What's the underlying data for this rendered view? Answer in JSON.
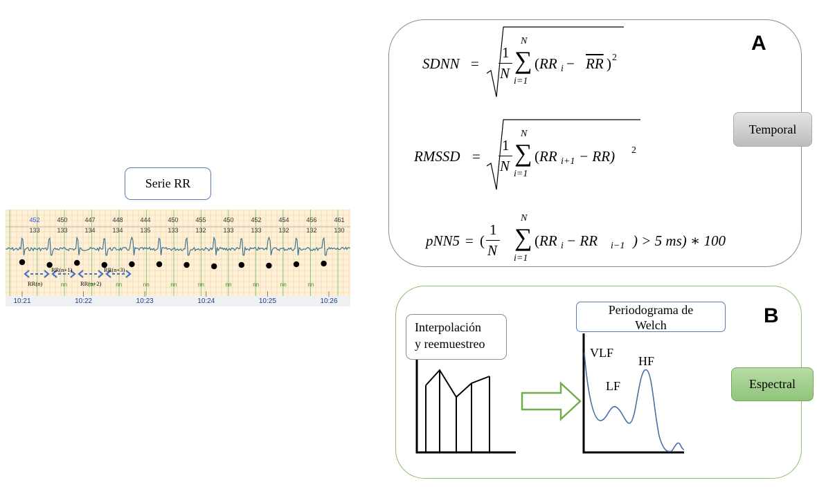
{
  "serie_label": "Serie RR",
  "ecg": {
    "top_values": [
      "452",
      "450",
      "447",
      "448",
      "444",
      "450",
      "455",
      "450",
      "452",
      "454",
      "456",
      "461"
    ],
    "bottom_values": [
      "133",
      "133",
      "134",
      "134",
      "135",
      "133",
      "132",
      "133",
      "133",
      "132",
      "132",
      "130"
    ],
    "nn_label": "nn",
    "interval_labels": [
      "RR(n)",
      "RR(n+1)",
      "RR(n+2)",
      "RR(n+3)"
    ],
    "time_labels": [
      "10:21",
      "10:22",
      "10:23",
      "10:24",
      "10:25",
      "10:26"
    ]
  },
  "panel_a": {
    "letter": "A",
    "category": "Temporal",
    "sdnn": {
      "lhs": "SDNN",
      "term": "(RR",
      "sub": "i",
      "minus": " − ",
      "mean": "RR",
      "close": ")",
      "exp": "2"
    },
    "rmssd": {
      "lhs": "RMSSD",
      "term": "(RR",
      "sub": "i+1",
      "minus": " − RR)",
      "exp": "2"
    },
    "pnn5": {
      "lhs": "pNN5",
      "open": "(",
      "term": "(RR",
      "sub1": "i",
      "minus": " − RR",
      "sub2": "i−1",
      "tail": ") > 5 ms) ∗ 100"
    },
    "sum_upper": "N",
    "sum_lower": "i=1",
    "frac_num": "1",
    "frac_den": "N",
    "equals": "="
  },
  "panel_b": {
    "letter": "B",
    "category": "Espectral",
    "interp_line1": "Interpolación",
    "interp_line2": "y reemuestreo",
    "welch_line1": "Periodograma de",
    "welch_line2": "Welch",
    "peaks": [
      "VLF",
      "LF",
      "HF"
    ]
  },
  "colors": {
    "ecg_trace": "#2f6e8e",
    "arrow_blue": "#4472c4",
    "nn_green": "#2e8b2e",
    "brace_blue": "#5a86c5",
    "arrow_green": "#70ad47",
    "spectrum_line": "#4a6fa5"
  }
}
